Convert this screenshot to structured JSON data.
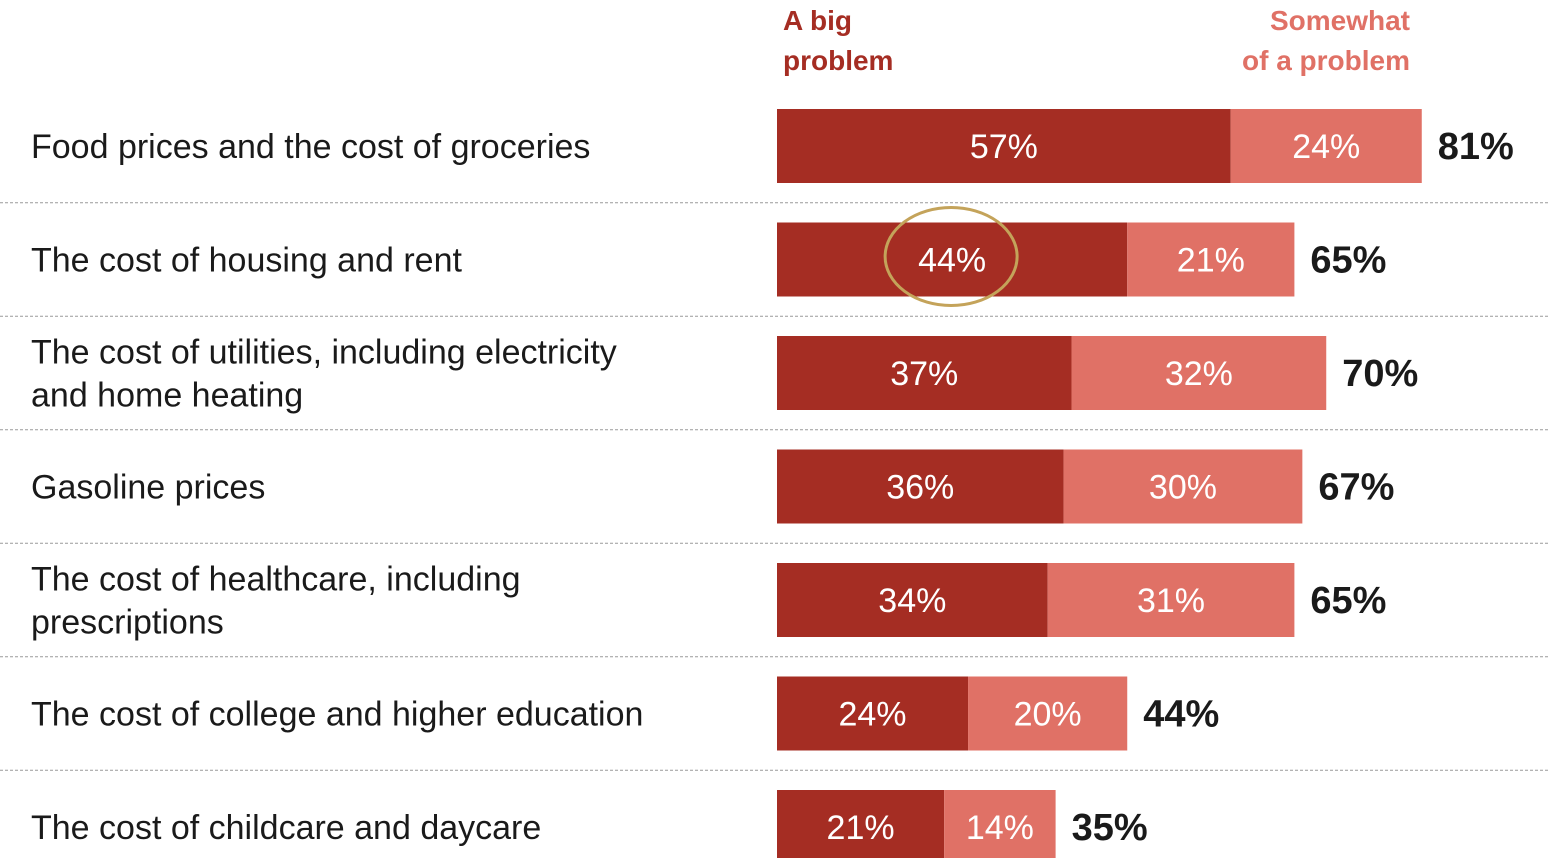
{
  "chart_data": {
    "type": "bar",
    "orientation": "horizontal",
    "stacked": true,
    "legend": {
      "placement": "top",
      "big": {
        "lines": [
          "A big",
          "problem"
        ],
        "color": "#a52d23"
      },
      "somewhat": {
        "lines": [
          "Somewhat",
          "of a problem"
        ],
        "color": "#e07166"
      }
    },
    "xlim": [
      0,
      100
    ],
    "grid": false,
    "categories": [
      {
        "lines": [
          "Food prices and the cost of groceries"
        ]
      },
      {
        "lines": [
          "The cost of housing and rent"
        ]
      },
      {
        "lines": [
          "The cost of utilities, including electricity",
          "and home heating"
        ]
      },
      {
        "lines": [
          "Gasoline prices"
        ]
      },
      {
        "lines": [
          "The cost of healthcare, including",
          "prescriptions"
        ]
      },
      {
        "lines": [
          "The cost of college and higher education"
        ]
      },
      {
        "lines": [
          "The cost of childcare and daycare"
        ]
      }
    ],
    "series": [
      {
        "name": "A big problem",
        "color": "#a52d23",
        "values": [
          57,
          44,
          37,
          36,
          34,
          24,
          21
        ],
        "labels": [
          "57%",
          "44%",
          "37%",
          "36%",
          "34%",
          "24%",
          "21%"
        ]
      },
      {
        "name": "Somewhat of a problem",
        "color": "#e07166",
        "values": [
          24,
          21,
          32,
          30,
          31,
          20,
          14
        ],
        "labels": [
          "24%",
          "21%",
          "32%",
          "30%",
          "31%",
          "20%",
          "14%"
        ]
      }
    ],
    "totals": [
      "81%",
      "65%",
      "70%",
      "67%",
      "65%",
      "44%",
      "35%"
    ],
    "highlight": {
      "category_index": 1,
      "series_index": 0,
      "shape": "ellipse",
      "color": "#c4a35a"
    }
  }
}
